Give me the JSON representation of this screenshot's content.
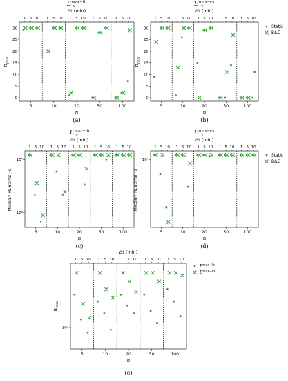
{
  "chart_data": [
    {
      "id": "a",
      "type": "scatter",
      "title": "E_v^{max−lb}",
      "top_label": "Δt (min)",
      "dt_ticks": [
        "1",
        "5",
        "10"
      ],
      "xlabel": "n",
      "ylabel": "n_fails",
      "groups": [
        "5",
        "10",
        "20",
        "50",
        "100"
      ],
      "y_scale": "linear",
      "ylim": [
        -1.5,
        32.5
      ],
      "y_ticks": [
        {
          "v": 0,
          "t": "0"
        },
        {
          "v": 5,
          "t": "5"
        },
        {
          "v": 10,
          "t": "10"
        },
        {
          "v": 15,
          "t": "15"
        },
        {
          "v": 20,
          "t": "20"
        },
        {
          "v": 25,
          "t": "25"
        },
        {
          "v": 30,
          "t": "30"
        }
      ],
      "panel_label": "(a)",
      "legend": [],
      "series": [
        {
          "name": "Static",
          "marker": "dot",
          "values": [
            [
              29,
              30,
              30
            ],
            [
              null,
              30,
              30
            ],
            [
              1,
              30,
              30
            ],
            [
              0,
              28,
              30
            ],
            [
              0,
              2,
              7
            ]
          ]
        },
        {
          "name": "B&C",
          "marker": "x",
          "values": [
            [
              30,
              30,
              30
            ],
            [
              20,
              30,
              30
            ],
            [
              2,
              30,
              30
            ],
            [
              0,
              28,
              30
            ],
            [
              0,
              2,
              29
            ]
          ]
        }
      ]
    },
    {
      "id": "b",
      "type": "scatter",
      "title": "E_v^{max−ex}",
      "top_label": "Δt (min)",
      "dt_ticks": [
        "1",
        "5",
        "10"
      ],
      "xlabel": "n",
      "ylabel": "n_fails",
      "groups": [
        "5",
        "10",
        "20",
        "50",
        "100"
      ],
      "y_scale": "linear",
      "ylim": [
        -1.5,
        32.5
      ],
      "y_ticks": [
        {
          "v": 0,
          "t": "0"
        },
        {
          "v": 5,
          "t": "5"
        },
        {
          "v": 10,
          "t": "10"
        },
        {
          "v": 15,
          "t": "15"
        },
        {
          "v": 20,
          "t": "20"
        },
        {
          "v": 25,
          "t": "25"
        },
        {
          "v": 30,
          "t": "30"
        }
      ],
      "panel_label": "(b)",
      "legend": [
        "Static",
        "B&C"
      ],
      "series": [
        {
          "name": "Static",
          "marker": "dot",
          "values": [
            [
              9,
              30,
              30
            ],
            [
              1,
              26,
              30
            ],
            [
              15,
              29,
              30
            ],
            [
              0,
              0,
              14
            ],
            [
              0,
              0,
              0
            ]
          ]
        },
        {
          "name": "B&C",
          "marker": "x",
          "values": [
            [
              24,
              30,
              30
            ],
            [
              13,
              30,
              30
            ],
            [
              0,
              29,
              30
            ],
            [
              0,
              11,
              27
            ],
            [
              0,
              0,
              11
            ]
          ]
        }
      ]
    },
    {
      "id": "c",
      "type": "scatter",
      "title": "E_v^{max−lb}",
      "top_label": "Δt (min)",
      "dt_ticks": [
        "1",
        "5",
        "10"
      ],
      "xlabel": "n",
      "ylabel": "Median Runtime (s)",
      "groups": [
        "5",
        "10",
        "20",
        "50",
        "100"
      ],
      "y_scale": "log",
      "ylim": [
        0.15,
        3000
      ],
      "y_ticks": [
        {
          "v": 1,
          "t": "10⁰"
        },
        {
          "v": 1000,
          "t": "10³"
        }
      ],
      "panel_label": "(c)",
      "legend": [],
      "series": [
        {
          "name": "Static",
          "marker": "dot",
          "values": [
            [
              1800,
              10,
              0.3
            ],
            [
              1800,
              200,
              10
            ],
            [
              1800,
              1800,
              40
            ],
            [
              1800,
              1800,
              1000
            ],
            [
              1800,
              1800,
              1800
            ]
          ]
        },
        {
          "name": "B&C",
          "marker": "x",
          "values": [
            [
              1800,
              45,
              0.7
            ],
            [
              1800,
              1800,
              15
            ],
            [
              1800,
              1800,
              300
            ],
            [
              1800,
              1800,
              1800
            ],
            [
              1800,
              1800,
              1800
            ]
          ]
        }
      ]
    },
    {
      "id": "d",
      "type": "scatter",
      "title": "E_v^{max−ex}",
      "top_label": "Δt (min)",
      "dt_ticks": [
        "1",
        "5",
        "10"
      ],
      "xlabel": "n",
      "ylabel": "Median Runtime (s)",
      "groups": [
        "5",
        "10",
        "20",
        "50",
        "100"
      ],
      "y_scale": "log",
      "ylim": [
        0.15,
        3000
      ],
      "y_ticks": [
        {
          "v": 1000,
          "t": "10³"
        }
      ],
      "panel_label": "(d)",
      "legend": [
        "Static",
        "B&C"
      ],
      "series": [
        {
          "name": "Static",
          "marker": "dot",
          "values": [
            [
              1800,
              150,
              2
            ],
            [
              1800,
              1800,
              30
            ],
            [
              1800,
              1800,
              1500
            ],
            [
              1800,
              1800,
              1800
            ],
            [
              1800,
              1800,
              1800
            ]
          ]
        },
        {
          "name": "B&C",
          "marker": "x",
          "values": [
            [
              1800,
              1800,
              0.3
            ],
            [
              1800,
              1800,
              600
            ],
            [
              1800,
              1800,
              1800
            ],
            [
              1800,
              1800,
              1800
            ],
            [
              1800,
              1800,
              1800
            ]
          ]
        }
      ]
    },
    {
      "id": "e",
      "type": "scatter",
      "title": "",
      "top_label": "Δt (min)",
      "dt_ticks": [
        "1",
        "5",
        "10"
      ],
      "xlabel": "n",
      "ylabel": "n_cuts",
      "groups": [
        "5",
        "10",
        "20",
        "50",
        "100"
      ],
      "y_scale": "log",
      "ylim": [
        400,
        15000
      ],
      "y_ticks": [
        {
          "v": 1000,
          "t": "10³"
        }
      ],
      "panel_label": "(e)",
      "legend": [
        "E_v^{max−lb}",
        "E_v^{max−ex}"
      ],
      "series": [
        {
          "name": "E_v^{max−lb}",
          "marker": "dot",
          "values": [
            [
              4000,
              1400,
              800
            ],
            [
              3000,
              1800,
              900
            ],
            [
              4000,
              2500,
              1800
            ],
            [
              4000,
              2000,
              1200
            ],
            [
              5000,
              3000,
              1600
            ]
          ]
        },
        {
          "name": "E_v^{max−ex}",
          "marker": "x",
          "values": [
            [
              10000,
              2700,
              1500
            ],
            [
              10000,
              5000,
              3500
            ],
            [
              10000,
              7000,
              4500
            ],
            [
              10000,
              10000,
              7000
            ],
            [
              10000,
              10000,
              9000
            ]
          ]
        }
      ]
    }
  ],
  "colors": {
    "series": "#2ca02c",
    "separator": "#000000",
    "frame": "#000000"
  }
}
